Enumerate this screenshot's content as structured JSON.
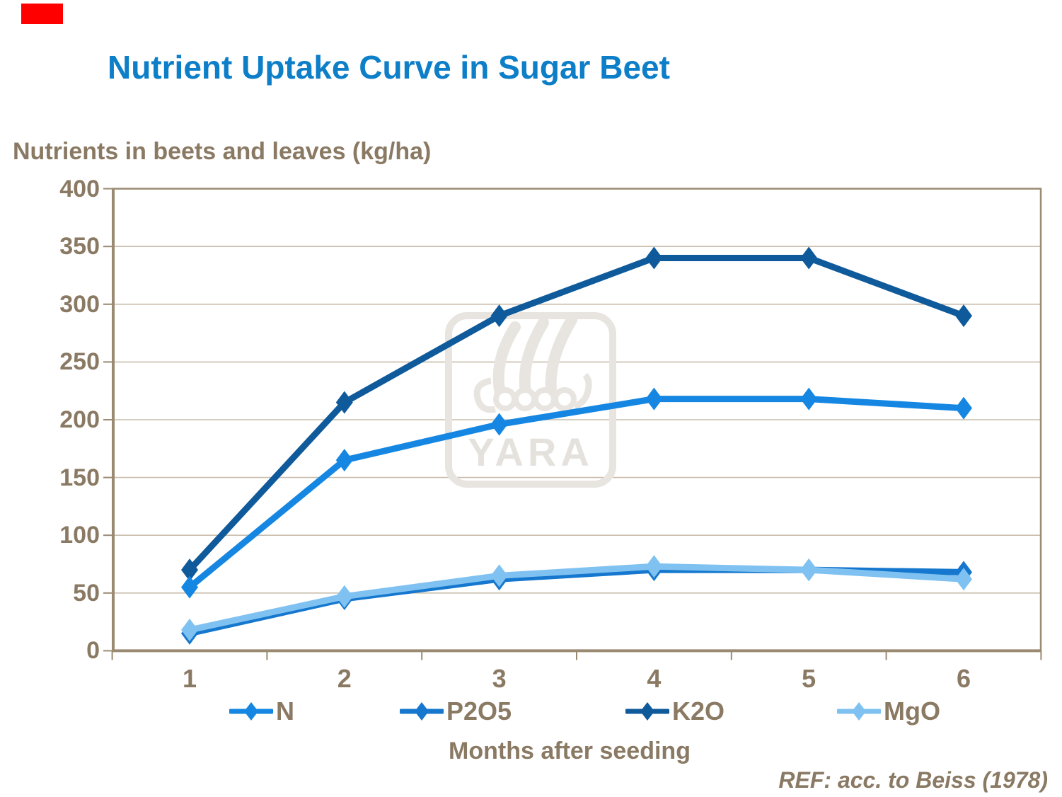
{
  "slide": {
    "title": "Nutrient Uptake Curve in Sugar Beet",
    "title_color": "#0D7EC8",
    "reference": "REF: acc. to Beiss (1978)",
    "watermark_text": "YARA",
    "red_bar_color": "#FF0000",
    "text_color": "#8A7963"
  },
  "chart_data": {
    "type": "line",
    "title": "Nutrient Uptake Curve in Sugar Beet",
    "ylabel": "Nutrients in beets and leaves (kg/ha)",
    "xlabel": "Months after seeding",
    "categories": [
      "1",
      "2",
      "3",
      "4",
      "5",
      "6"
    ],
    "x_values": [
      1,
      2,
      3,
      4,
      5,
      6
    ],
    "ylim": [
      0,
      400
    ],
    "yticks": [
      0,
      50,
      100,
      150,
      200,
      250,
      300,
      350,
      400
    ],
    "grid": "horizontal",
    "legend_position": "bottom",
    "marker": "diamond",
    "series": [
      {
        "name": "N",
        "color": "#1587E2",
        "values": [
          55,
          165,
          196,
          218,
          218,
          210
        ]
      },
      {
        "name": "P2O5",
        "color": "#1577CD",
        "values": [
          15,
          45,
          62,
          70,
          70,
          68
        ]
      },
      {
        "name": "K2O",
        "color": "#0F5A9B",
        "values": [
          70,
          215,
          290,
          340,
          340,
          290
        ]
      },
      {
        "name": "MgO",
        "color": "#7FC2F2",
        "values": [
          18,
          47,
          65,
          73,
          70,
          62
        ]
      }
    ],
    "draw_order": [
      2,
      1,
      0,
      3
    ],
    "colors": {
      "gridline": "#C9BDAC",
      "axis": "#9A8A72",
      "tick_label": "#8A7963",
      "watermark": "#E8E5E1"
    }
  }
}
